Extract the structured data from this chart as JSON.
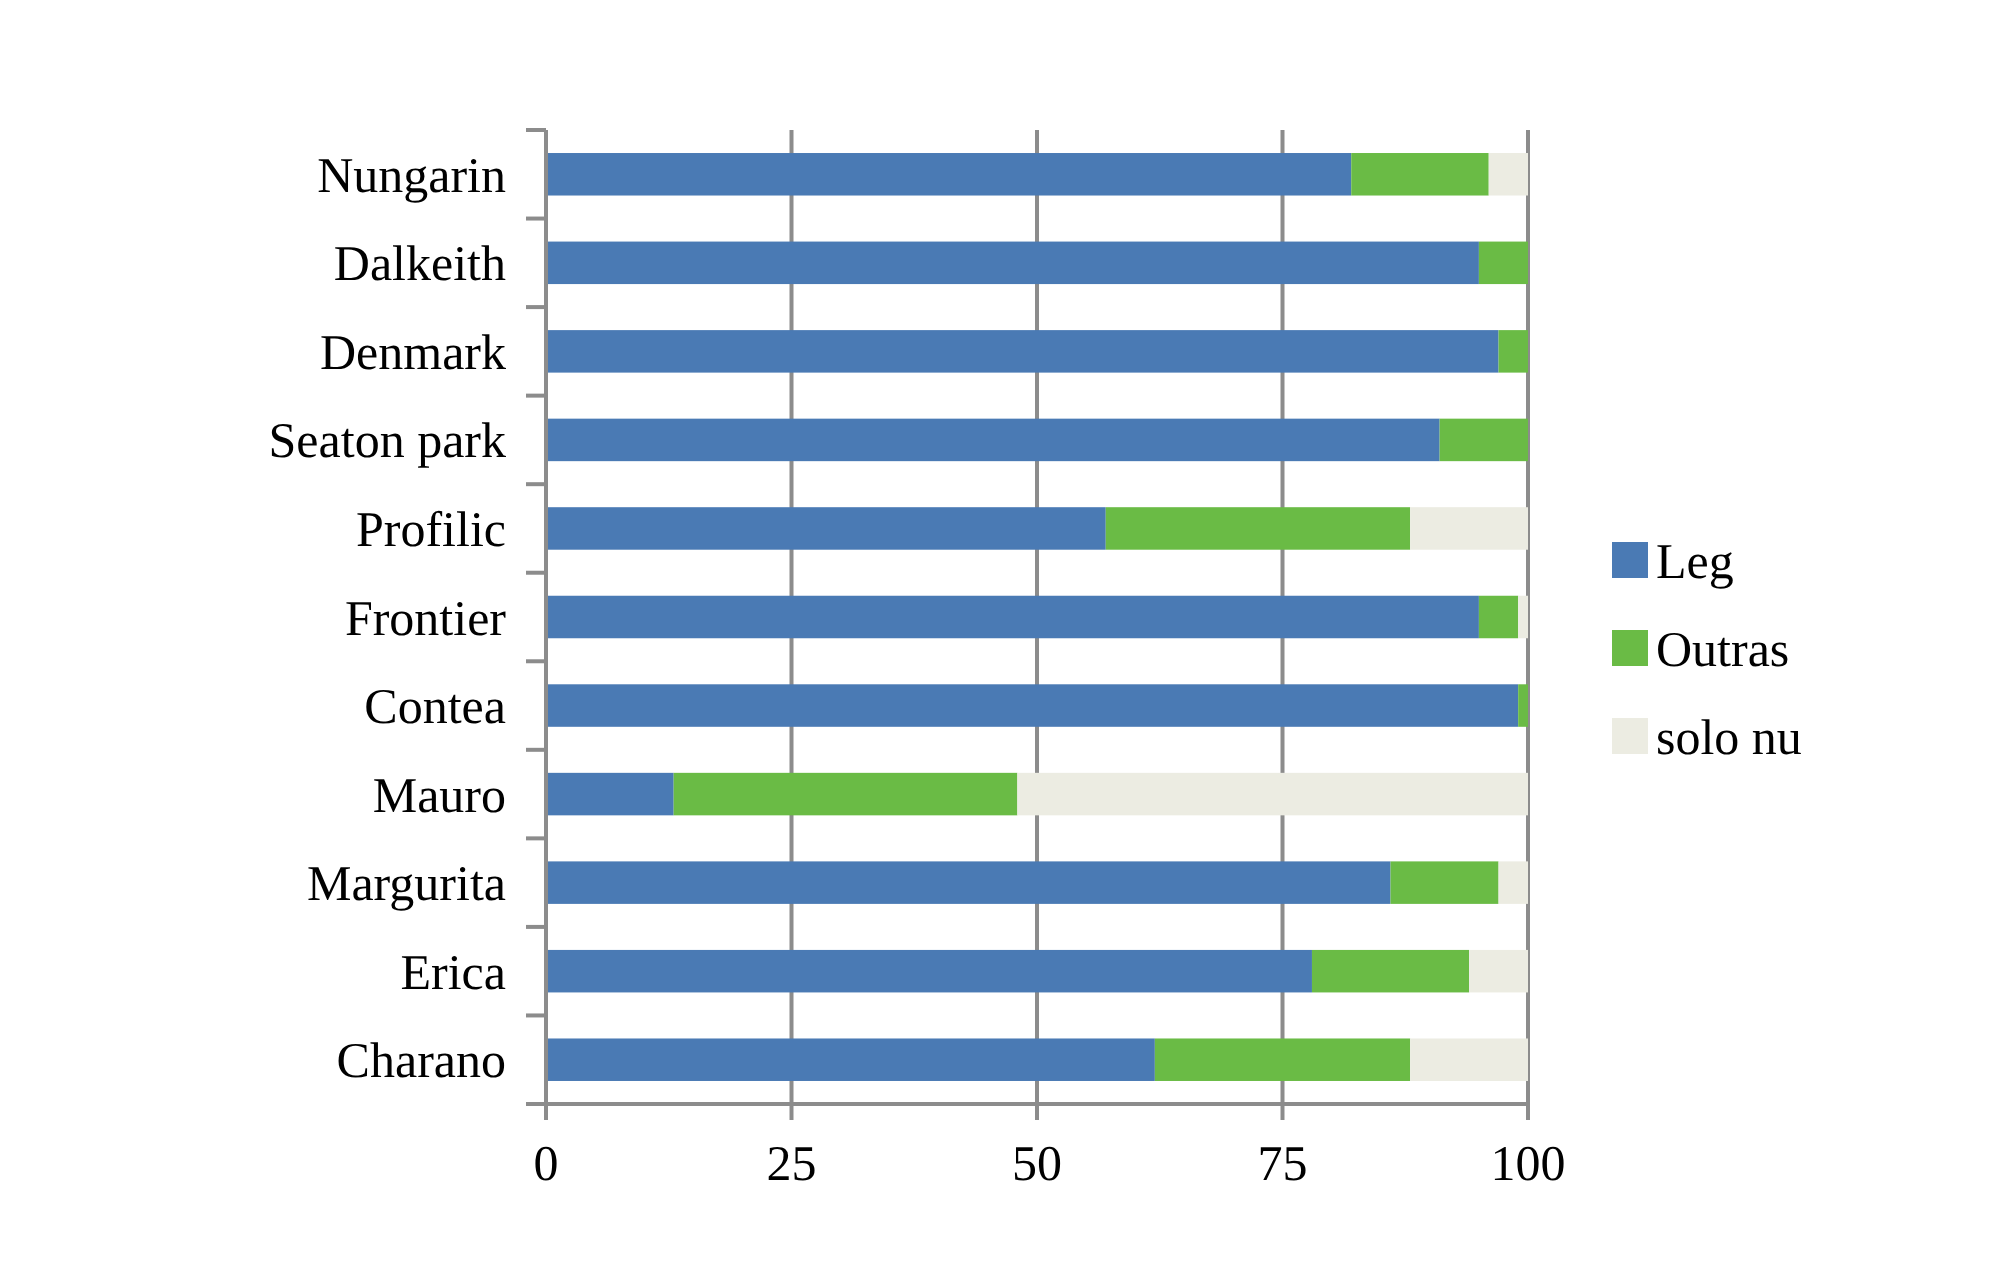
{
  "chart_data": {
    "type": "bar",
    "orientation": "horizontal",
    "stacked": true,
    "categories": [
      "Nungarin",
      "Dalkeith",
      "Denmark",
      "Seaton park",
      "Profilic",
      "Frontier",
      "Contea",
      "Mauro",
      "Margurita",
      "Erica",
      "Charano"
    ],
    "series": [
      {
        "name": "Leg",
        "color": "#4a7ab4",
        "values": [
          82,
          95,
          97,
          91,
          57,
          95,
          99,
          13,
          86,
          78,
          62
        ]
      },
      {
        "name": "Outras",
        "color": "#6abb45",
        "values": [
          14,
          5,
          3,
          9,
          31,
          4,
          1,
          35,
          11,
          16,
          26
        ]
      },
      {
        "name": "solo nu",
        "color": "#ecece2",
        "values": [
          4,
          0,
          0,
          0,
          12,
          1,
          0,
          52,
          3,
          6,
          12
        ]
      }
    ],
    "xlim": [
      0,
      100
    ],
    "xticks": [
      0,
      25,
      50,
      75,
      100
    ],
    "grid": "x",
    "legend": "right"
  }
}
